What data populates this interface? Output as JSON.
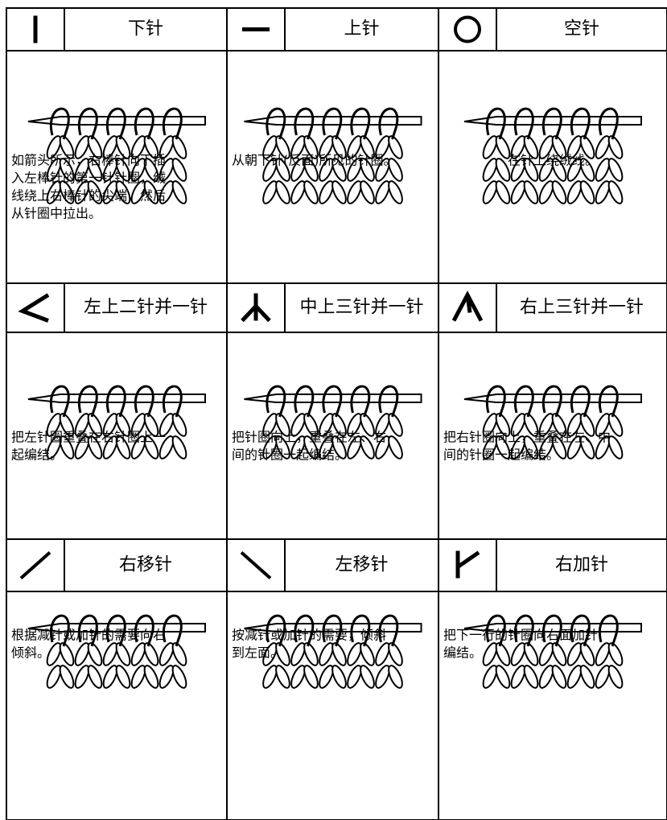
{
  "cells": [
    {
      "title": "下针",
      "description": [
        "如箭头所示，右棒针向下插",
        "入左棒针的第一针针圈，绒",
        "线绕上右棒针的尖端，然后",
        "从针圈中拉出。"
      ]
    },
    {
      "title": "上针",
      "description": [
        "从朝下针(反面)所见的针圈。"
      ]
    },
    {
      "title": "空针",
      "description": [
        "在针上绕绒线。"
      ]
    },
    {
      "title": "左上二针并一针",
      "description": [
        "把左针圈重叠在右针圈上一",
        "起编结。"
      ]
    },
    {
      "title": "中上三针并一针",
      "description": [
        "把针圈向上，重叠在左、右",
        "间的针圈一起编结。"
      ]
    },
    {
      "title": "右上三针并一针",
      "description": [
        "把右针圈向上，重叠在左、中",
        "间的针圈一起编结。"
      ]
    },
    {
      "title": "右移针",
      "description": [
        "根据减针或加针的需要向右",
        "倾斜。"
      ]
    },
    {
      "title": "左移针",
      "description": [
        "按减针或加针的需要，倾斜",
        "到左面。"
      ]
    },
    {
      "title": "右加针",
      "description": [
        "把下一行的针圈向右面加针",
        "编结。"
      ]
    }
  ]
}
